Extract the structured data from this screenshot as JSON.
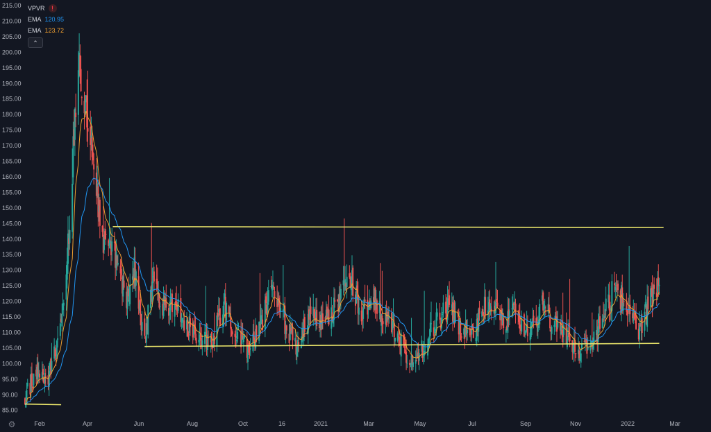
{
  "legend": {
    "indicator": "VPVR",
    "ema1_label": "EMA",
    "ema1_value": "120.95",
    "ema2_label": "EMA",
    "ema2_value": "123.72",
    "collapse_icon": "chevron-up-icon",
    "warning_icon": "exclamation-icon"
  },
  "colors": {
    "background": "#131722",
    "up": "#26a69a",
    "down": "#ef5350",
    "ema_fast": "#f0a030",
    "ema_slow": "#2196f3",
    "trendline": "#e8e36a",
    "axis_text": "#b2b5be"
  },
  "chart_data": {
    "type": "candlestick",
    "y_axis": {
      "ticks": [
        "215.00",
        "210.00",
        "205.00",
        "200.00",
        "195.00",
        "190.00",
        "185.00",
        "180.00",
        "175.00",
        "170.00",
        "165.00",
        "160.00",
        "155.00",
        "150.00",
        "145.00",
        "140.00",
        "135.00",
        "130.00",
        "125.00",
        "120.00",
        "115.00",
        "110.00",
        "105.00",
        "100.00",
        "95.00",
        "90.00",
        "85.00"
      ],
      "range": [
        85,
        215
      ]
    },
    "x_axis": {
      "ticks": [
        "Feb",
        "Apr",
        "Jun",
        "Aug",
        "Oct",
        "16",
        "2021",
        "Mar",
        "May",
        "Jul",
        "Sep",
        "Nov",
        "2022",
        "Mar"
      ],
      "range": [
        "2020-01-14",
        "2022-03-15"
      ]
    },
    "price_path": [
      [
        "2020-01-14",
        90
      ],
      [
        "2020-01-28",
        98
      ],
      [
        "2020-02-10",
        96
      ],
      [
        "2020-02-24",
        110
      ],
      [
        "2020-03-05",
        140
      ],
      [
        "2020-03-16",
        200
      ],
      [
        "2020-03-30",
        172
      ],
      [
        "2020-04-13",
        140
      ],
      [
        "2020-04-27",
        135
      ],
      [
        "2020-05-11",
        122
      ],
      [
        "2020-05-20",
        130
      ],
      [
        "2020-06-01",
        107
      ],
      [
        "2020-06-10",
        125
      ],
      [
        "2020-06-22",
        118
      ],
      [
        "2020-07-06",
        120
      ],
      [
        "2020-07-20",
        112
      ],
      [
        "2020-08-03",
        110
      ],
      [
        "2020-08-17",
        107
      ],
      [
        "2020-09-01",
        119
      ],
      [
        "2020-09-16",
        108
      ],
      [
        "2020-10-01",
        104
      ],
      [
        "2020-10-13",
        112
      ],
      [
        "2020-10-28",
        124
      ],
      [
        "2020-11-11",
        113
      ],
      [
        "2020-11-26",
        105
      ],
      [
        "2020-12-10",
        117
      ],
      [
        "2020-12-24",
        114
      ],
      [
        "2021-01-11",
        118
      ],
      [
        "2021-01-26",
        128
      ],
      [
        "2021-02-09",
        116
      ],
      [
        "2021-02-23",
        120
      ],
      [
        "2021-03-10",
        113
      ],
      [
        "2021-03-24",
        107
      ],
      [
        "2021-04-08",
        101
      ],
      [
        "2021-04-22",
        105
      ],
      [
        "2021-05-06",
        114
      ],
      [
        "2021-05-21",
        118
      ],
      [
        "2021-06-05",
        110
      ],
      [
        "2021-06-21",
        112
      ],
      [
        "2021-07-06",
        120
      ],
      [
        "2021-07-21",
        114
      ],
      [
        "2021-08-05",
        116
      ],
      [
        "2021-08-20",
        109
      ],
      [
        "2021-09-05",
        118
      ],
      [
        "2021-09-20",
        113
      ],
      [
        "2021-10-05",
        107
      ],
      [
        "2021-10-20",
        104
      ],
      [
        "2021-11-04",
        106
      ],
      [
        "2021-11-19",
        118
      ],
      [
        "2021-12-01",
        126
      ],
      [
        "2021-12-13",
        116
      ],
      [
        "2021-12-28",
        111
      ],
      [
        "2022-01-10",
        120
      ],
      [
        "2022-01-20",
        126
      ]
    ],
    "ema_fast_last": 123.72,
    "ema_slow_last": 120.95,
    "lines": [
      {
        "name": "upper-resistance",
        "x1": "2020-04-25",
        "y1": 144,
        "x2": "2022-01-25",
        "y2": 143.7
      },
      {
        "name": "lower-support",
        "x1": "2020-06-01",
        "y1": 105.5,
        "x2": "2022-01-20",
        "y2": 106.5
      },
      {
        "name": "low-marker",
        "x1": "2020-01-14",
        "y1": 87,
        "x2": "2020-02-25",
        "y2": 86.8
      }
    ],
    "grid": false
  }
}
